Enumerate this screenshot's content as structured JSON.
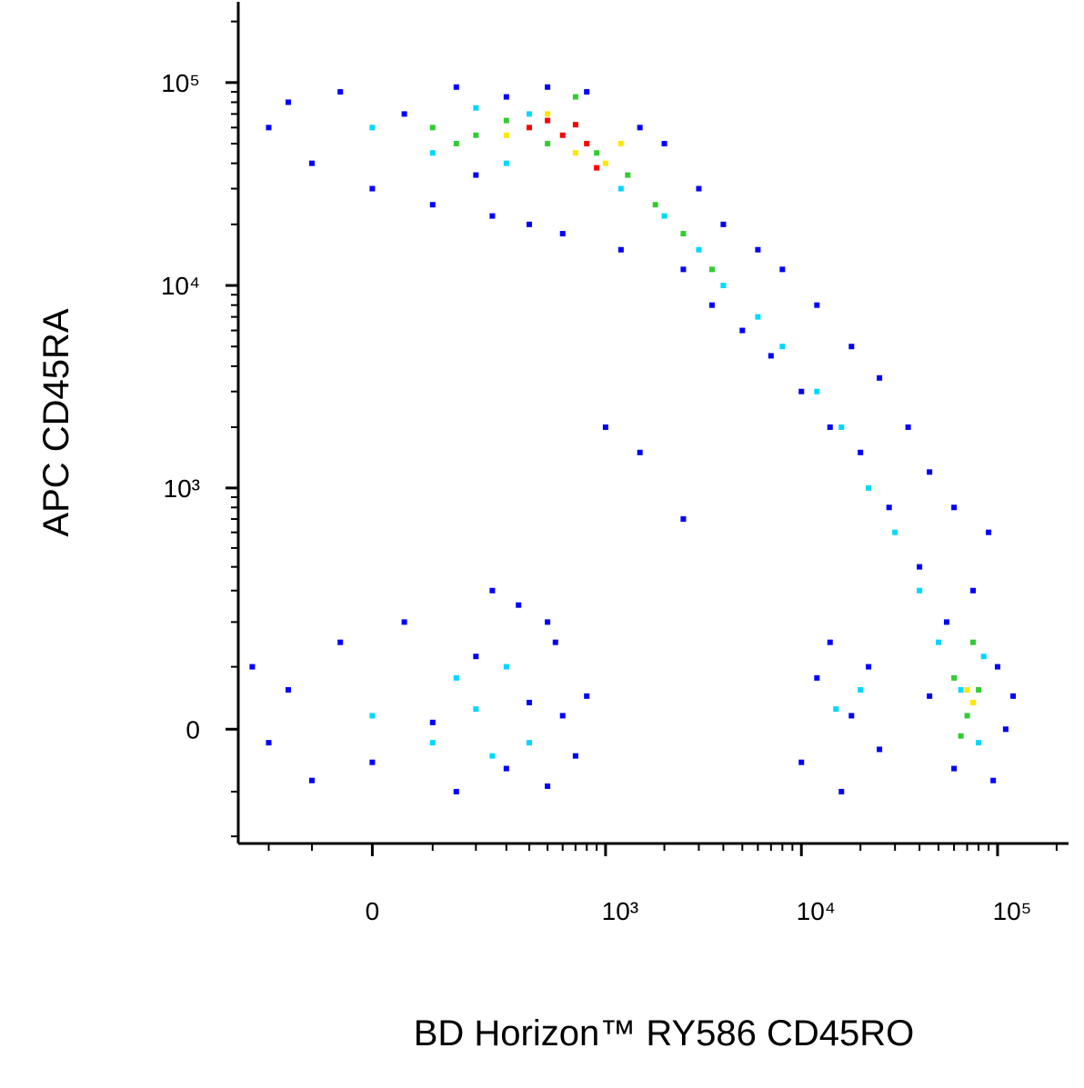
{
  "chart_data": {
    "type": "scatter",
    "x_label": "BD Horizon™ RY586  CD45RO",
    "y_label": "APC  CD45RA",
    "xscale": "asinh",
    "yscale": "asinh",
    "xlim": [
      -300,
      230000
    ],
    "ylim": [
      -220,
      250000
    ],
    "xticks": [
      0,
      {
        "value": 1000,
        "label": "10³"
      },
      {
        "value": 10000,
        "label": "10⁴"
      },
      {
        "value": 100000,
        "label": "10⁵"
      }
    ],
    "yticks": [
      0,
      {
        "value": 1000,
        "label": "10³"
      },
      {
        "value": 10000,
        "label": "10⁴"
      },
      {
        "value": 100000,
        "label": "10⁵"
      }
    ],
    "xminorticks": [
      -200,
      -100,
      100,
      200,
      300,
      400,
      500,
      600,
      700,
      800,
      900,
      2000,
      3000,
      4000,
      5000,
      6000,
      7000,
      8000,
      9000,
      20000,
      30000,
      40000,
      50000,
      60000,
      70000,
      80000,
      90000,
      200000
    ],
    "yminorticks": [
      -200,
      -100,
      100,
      200,
      300,
      400,
      500,
      600,
      700,
      800,
      900,
      2000,
      3000,
      4000,
      5000,
      6000,
      7000,
      8000,
      9000,
      20000,
      30000,
      40000,
      50000,
      60000,
      70000,
      80000,
      90000,
      200000
    ],
    "series": [
      {
        "color": "#0000ff",
        "x": [
          -200,
          -150,
          -100,
          -50,
          0,
          50,
          100,
          150,
          200,
          250,
          300,
          400,
          500,
          600,
          800,
          1200,
          1500,
          2000,
          2500,
          3000,
          3500,
          4000,
          5000,
          6000,
          7000,
          8000,
          10000,
          12000,
          14000,
          18000,
          20000,
          25000,
          28000,
          35000,
          40000,
          45000,
          55000,
          60000,
          75000,
          90000,
          100000,
          110000,
          120000,
          95000,
          60000,
          45000,
          1000,
          1500,
          2500,
          500,
          800,
          -250,
          -200,
          -150,
          -100,
          -50,
          0,
          50,
          100,
          150,
          200,
          300,
          350,
          400,
          500,
          550,
          600,
          700,
          250,
          10000,
          12000,
          14000,
          16000,
          18000,
          22000,
          25000
        ],
        "values": [
          60000,
          80000,
          40000,
          90000,
          30000,
          70000,
          25000,
          95000,
          35000,
          22000,
          85000,
          20000,
          95000,
          18000,
          90000,
          15000,
          60000,
          50000,
          12000,
          30000,
          8000,
          20000,
          6000,
          15000,
          4500,
          12000,
          3000,
          8000,
          2000,
          5000,
          1500,
          3500,
          800,
          2000,
          400,
          1200,
          200,
          800,
          300,
          600,
          100,
          0,
          50,
          -80,
          -60,
          50,
          2000,
          1500,
          700,
          200,
          50,
          100,
          -20,
          60,
          -80,
          150,
          -50,
          200,
          10,
          -100,
          120,
          -60,
          250,
          40,
          -90,
          150,
          20,
          -40,
          300,
          -50,
          80,
          150,
          -100,
          20,
          100,
          -30
        ]
      },
      {
        "color": "#00d8ff",
        "x": [
          0,
          100,
          200,
          300,
          400,
          1200,
          2000,
          3000,
          4000,
          6000,
          8000,
          12000,
          16000,
          22000,
          30000,
          40000,
          50000,
          65000,
          80000,
          85000,
          0,
          100,
          150,
          200,
          300,
          400,
          250,
          15000,
          20000
        ],
        "values": [
          60000,
          45000,
          75000,
          40000,
          70000,
          30000,
          22000,
          15000,
          10000,
          7000,
          5000,
          3000,
          2000,
          1000,
          600,
          300,
          150,
          60,
          -20,
          120,
          20,
          -20,
          80,
          30,
          100,
          -20,
          -40,
          30,
          60
        ]
      },
      {
        "color": "#33cc33",
        "x": [
          100,
          200,
          300,
          500,
          900,
          1300,
          1800,
          2500,
          3500,
          60000,
          70000,
          75000,
          65000,
          150,
          700,
          80000
        ],
        "values": [
          60000,
          55000,
          65000,
          50000,
          45000,
          35000,
          25000,
          18000,
          12000,
          80,
          20,
          150,
          -10,
          50000,
          85000,
          60
        ]
      },
      {
        "color": "#ffe600",
        "x": [
          300,
          500,
          700,
          1000,
          1200,
          70000,
          75000
        ],
        "values": [
          55000,
          70000,
          45000,
          40000,
          50000,
          60,
          40
        ]
      },
      {
        "color": "#ff0000",
        "x": [
          400,
          600,
          800,
          500,
          900,
          700
        ],
        "values": [
          60000,
          55000,
          50000,
          65000,
          38000,
          62000
        ]
      }
    ]
  }
}
